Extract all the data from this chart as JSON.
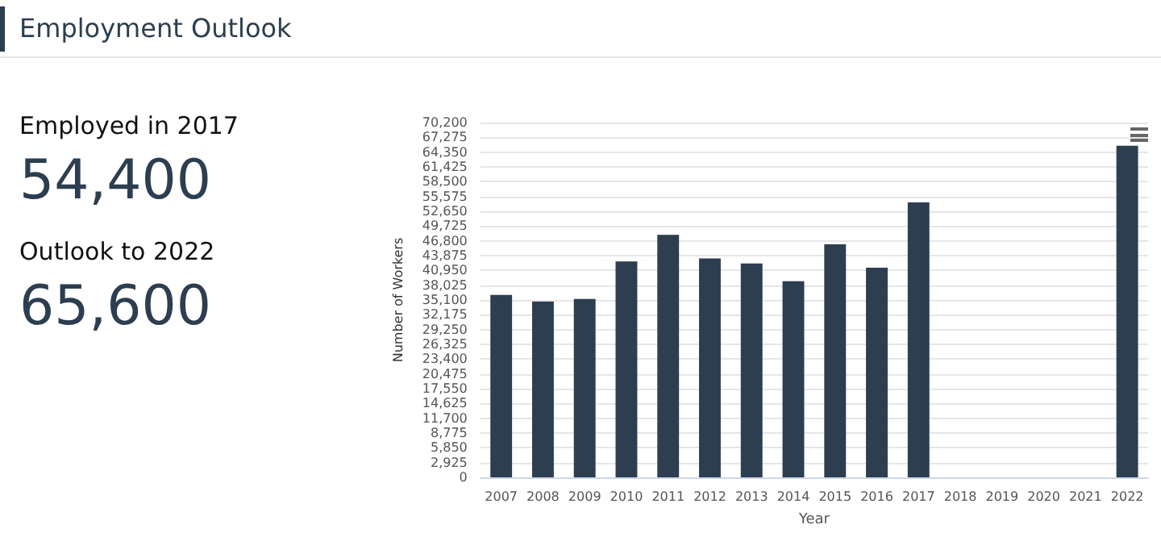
{
  "chart_data": [
    {
      "type": "other",
      "title": "Employment Outlook",
      "annotations": [
        "Employed in 2017",
        "54,400",
        "Outlook to 2022",
        "65,600"
      ]
    },
    {
      "type": "bar",
      "xlabel": "Year",
      "ylabel": "Number of Workers",
      "categories": [
        "2007",
        "2008",
        "2009",
        "2010",
        "2011",
        "2012",
        "2013",
        "2014",
        "2015",
        "2016",
        "2017",
        "2018",
        "2019",
        "2020",
        "2021",
        "2022"
      ],
      "values": [
        36100,
        34800,
        35300,
        42700,
        48000,
        43300,
        42300,
        38800,
        46100,
        41500,
        54400,
        null,
        null,
        null,
        null,
        65600
      ],
      "color": "#2d3e50",
      "ylim": [
        0,
        70200
      ],
      "yticks": [
        0,
        {
          "value": 2925,
          "label": "2,925"
        },
        {
          "value": 5850,
          "label": "5,850"
        },
        {
          "value": 8775,
          "label": "8,775"
        },
        {
          "value": 11700,
          "label": "11,700"
        },
        {
          "value": 14625,
          "label": "14,625"
        },
        {
          "value": 17550,
          "label": "17,550"
        },
        {
          "value": 20475,
          "label": "20,475"
        },
        {
          "value": 23400,
          "label": "23,400"
        },
        {
          "value": 26325,
          "label": "26,325"
        },
        {
          "value": 29250,
          "label": "29,250"
        },
        {
          "value": 32175,
          "label": "32,175"
        },
        {
          "value": 35100,
          "label": "35,100"
        },
        {
          "value": 38025,
          "label": "38,025"
        },
        {
          "value": 40950,
          "label": "40,950"
        },
        {
          "value": 43875,
          "label": "43,875"
        },
        {
          "value": 46800,
          "label": "46,800"
        },
        {
          "value": 49725,
          "label": "49,725"
        },
        {
          "value": 52650,
          "label": "52,650"
        },
        {
          "value": 55575,
          "label": "55,575"
        },
        {
          "value": 58500,
          "label": "58,500"
        },
        {
          "value": 61425,
          "label": "61,425"
        },
        {
          "value": 64350,
          "label": "64,350"
        },
        {
          "value": 67275,
          "label": "67,275"
        },
        {
          "value": 70200,
          "label": "70,200"
        }
      ],
      "grid": "y"
    }
  ]
}
